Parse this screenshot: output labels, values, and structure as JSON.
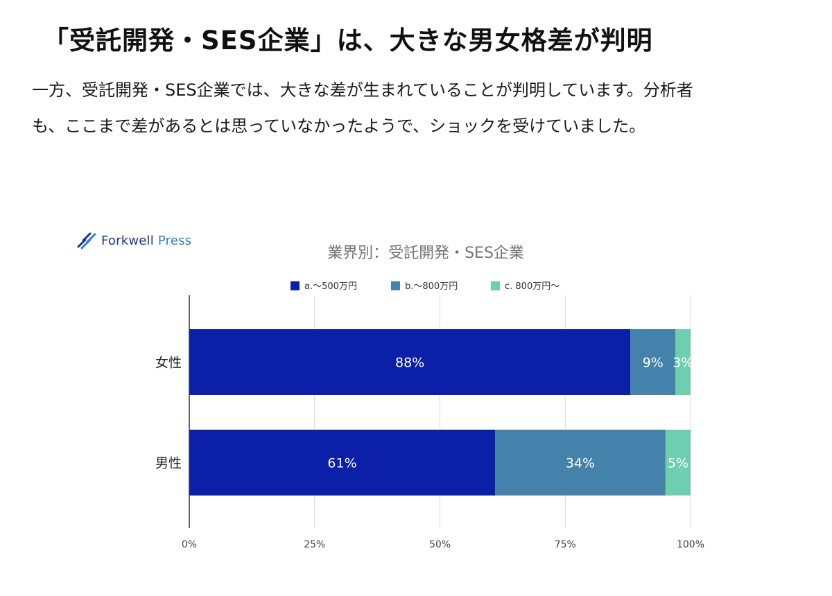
{
  "article": {
    "heading": "「受託開発・SES企業」は、大きな男女格差が判明",
    "paragraph_lines": [
      "一方、受託開発・SES企業では、大きな差が生まれていることが判明しています。分析者",
      "も、ここまで差があるとは思っていなかったようで、ショックを受けていました。"
    ]
  },
  "logo": {
    "brand": "Forkwell",
    "suffix": "Press",
    "icon": "forkwell-logo-icon"
  },
  "chart_data": {
    "type": "bar",
    "orientation": "horizontal",
    "stacked": true,
    "title": "業界別：受託開発・SES企業",
    "categories": [
      "女性",
      "男性"
    ],
    "series": [
      {
        "name": "a.〜500万円",
        "color": "#0b1fa8",
        "values": [
          88,
          61
        ]
      },
      {
        "name": "b.〜800万円",
        "color": "#4481ab",
        "values": [
          9,
          34
        ]
      },
      {
        "name": "c. 800万円〜",
        "color": "#6dcfb0",
        "values": [
          3,
          5
        ]
      }
    ],
    "data_labels": [
      [
        "88%",
        "61%"
      ],
      [
        "9%",
        "34%"
      ],
      [
        "3%",
        "5%"
      ]
    ],
    "x_ticks": [
      "0%",
      "25%",
      "50%",
      "75%",
      "100%"
    ],
    "xlim": [
      0,
      100
    ],
    "legend_position": "top",
    "grid": true
  }
}
